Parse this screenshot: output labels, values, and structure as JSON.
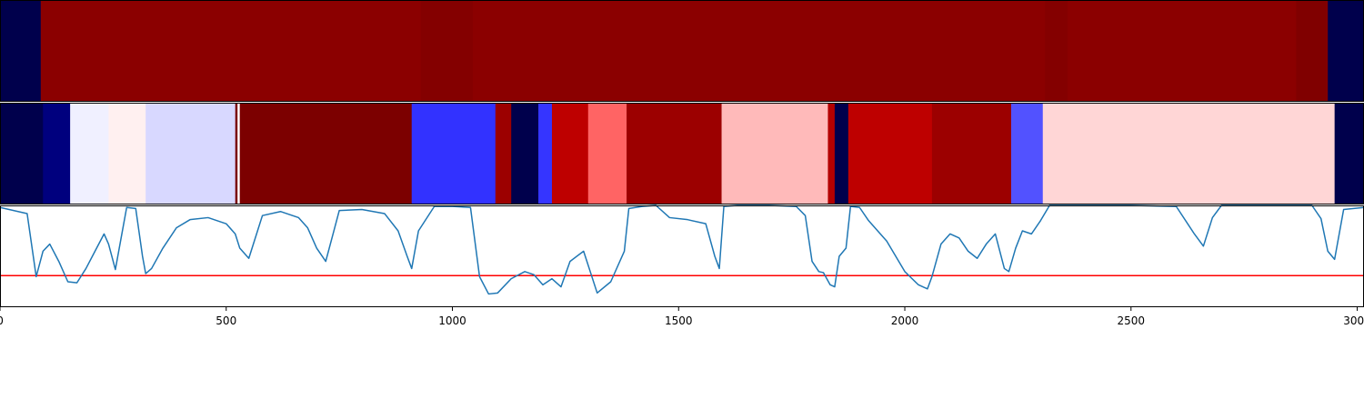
{
  "chart_data": [
    {
      "type": "heatmap",
      "panel": "top-band",
      "colormap": "seismic",
      "x_range": [
        0,
        3015
      ],
      "segments": [
        {
          "x0": 0,
          "x1": 90,
          "color": "#00004c"
        },
        {
          "x0": 90,
          "x1": 930,
          "color": "#8b0000"
        },
        {
          "x0": 930,
          "x1": 1045,
          "color": "#840000"
        },
        {
          "x0": 1045,
          "x1": 2310,
          "color": "#8b0000"
        },
        {
          "x0": 2310,
          "x1": 2360,
          "color": "#840000"
        },
        {
          "x0": 2360,
          "x1": 2865,
          "color": "#8b0000"
        },
        {
          "x0": 2865,
          "x1": 2935,
          "color": "#800000"
        },
        {
          "x0": 2935,
          "x1": 3015,
          "color": "#00004c"
        }
      ]
    },
    {
      "type": "heatmap",
      "panel": "middle-band",
      "colormap": "seismic",
      "x_range": [
        0,
        3015
      ],
      "segments": [
        {
          "x0": 0,
          "x1": 95,
          "color": "#00004c"
        },
        {
          "x0": 95,
          "x1": 155,
          "color": "#00007e"
        },
        {
          "x0": 155,
          "x1": 240,
          "color": "#f0f0ff"
        },
        {
          "x0": 240,
          "x1": 322,
          "color": "#fff0f0"
        },
        {
          "x0": 322,
          "x1": 520,
          "color": "#d8d8ff"
        },
        {
          "x0": 520,
          "x1": 525,
          "color": "#7a0000"
        },
        {
          "x0": 525,
          "x1": 530,
          "color": "#ffffff"
        },
        {
          "x0": 530,
          "x1": 910,
          "color": "#7c0000"
        },
        {
          "x0": 910,
          "x1": 1095,
          "color": "#3232ff"
        },
        {
          "x0": 1095,
          "x1": 1130,
          "color": "#9c0000"
        },
        {
          "x0": 1130,
          "x1": 1190,
          "color": "#00004c"
        },
        {
          "x0": 1190,
          "x1": 1220,
          "color": "#3535ff"
        },
        {
          "x0": 1220,
          "x1": 1300,
          "color": "#be0000"
        },
        {
          "x0": 1300,
          "x1": 1385,
          "color": "#ff6464"
        },
        {
          "x0": 1385,
          "x1": 1595,
          "color": "#9c0000"
        },
        {
          "x0": 1595,
          "x1": 1830,
          "color": "#ffbaba"
        },
        {
          "x0": 1830,
          "x1": 1845,
          "color": "#b40000"
        },
        {
          "x0": 1845,
          "x1": 1875,
          "color": "#00004c"
        },
        {
          "x0": 1875,
          "x1": 2060,
          "color": "#be0000"
        },
        {
          "x0": 2060,
          "x1": 2235,
          "color": "#9c0000"
        },
        {
          "x0": 2235,
          "x1": 2305,
          "color": "#5252ff"
        },
        {
          "x0": 2305,
          "x1": 2950,
          "color": "#ffd6d6"
        },
        {
          "x0": 2950,
          "x1": 3015,
          "color": "#00004c"
        }
      ]
    },
    {
      "type": "line",
      "panel": "bottom-line",
      "xlim": [
        0,
        3015
      ],
      "ylim": [
        0.0,
        1.0
      ],
      "xticks": [
        "0",
        "500",
        "1000",
        "1500",
        "2000",
        "2500",
        "3000"
      ],
      "xtick_values": [
        0,
        500,
        1000,
        1500,
        2000,
        2500,
        3000
      ],
      "series_color": "#1f77b4",
      "threshold": {
        "y": 0.31,
        "color": "#ff0000"
      },
      "x": [
        0,
        60,
        80,
        95,
        110,
        130,
        150,
        170,
        190,
        210,
        230,
        240,
        255,
        280,
        300,
        315,
        322,
        335,
        360,
        390,
        420,
        460,
        500,
        520,
        530,
        550,
        580,
        620,
        660,
        680,
        700,
        720,
        750,
        800,
        850,
        880,
        900,
        910,
        925,
        960,
        1000,
        1040,
        1060,
        1080,
        1100,
        1130,
        1160,
        1180,
        1200,
        1220,
        1240,
        1260,
        1290,
        1320,
        1350,
        1380,
        1390,
        1420,
        1450,
        1480,
        1520,
        1560,
        1580,
        1590,
        1600,
        1630,
        1700,
        1760,
        1780,
        1795,
        1810,
        1820,
        1835,
        1845,
        1855,
        1870,
        1880,
        1900,
        1920,
        1960,
        2000,
        2030,
        2050,
        2060,
        2080,
        2100,
        2120,
        2140,
        2160,
        2180,
        2200,
        2220,
        2230,
        2245,
        2260,
        2280,
        2300,
        2320,
        2360,
        2500,
        2600,
        2640,
        2660,
        2680,
        2700,
        2800,
        2900,
        2920,
        2935,
        2950,
        2970,
        3015
      ],
      "y": [
        0.98,
        0.92,
        0.3,
        0.55,
        0.62,
        0.45,
        0.25,
        0.24,
        0.38,
        0.55,
        0.72,
        0.62,
        0.37,
        0.98,
        0.97,
        0.5,
        0.33,
        0.38,
        0.58,
        0.78,
        0.86,
        0.88,
        0.82,
        0.72,
        0.58,
        0.48,
        0.9,
        0.94,
        0.88,
        0.78,
        0.58,
        0.45,
        0.95,
        0.96,
        0.92,
        0.75,
        0.5,
        0.38,
        0.75,
        0.99,
        0.99,
        0.98,
        0.3,
        0.13,
        0.14,
        0.28,
        0.35,
        0.32,
        0.22,
        0.28,
        0.2,
        0.45,
        0.55,
        0.14,
        0.25,
        0.55,
        0.97,
        0.99,
        1.0,
        0.88,
        0.86,
        0.82,
        0.5,
        0.38,
        0.99,
        1.0,
        1.0,
        0.99,
        0.9,
        0.45,
        0.35,
        0.34,
        0.22,
        0.2,
        0.5,
        0.58,
        0.99,
        0.98,
        0.85,
        0.65,
        0.35,
        0.22,
        0.18,
        0.3,
        0.62,
        0.72,
        0.68,
        0.55,
        0.48,
        0.62,
        0.72,
        0.38,
        0.35,
        0.58,
        0.75,
        0.72,
        0.85,
        1.0,
        1.0,
        1.0,
        0.99,
        0.72,
        0.6,
        0.88,
        1.0,
        1.0,
        1.0,
        0.87,
        0.55,
        0.47,
        0.96,
        0.98
      ]
    }
  ]
}
